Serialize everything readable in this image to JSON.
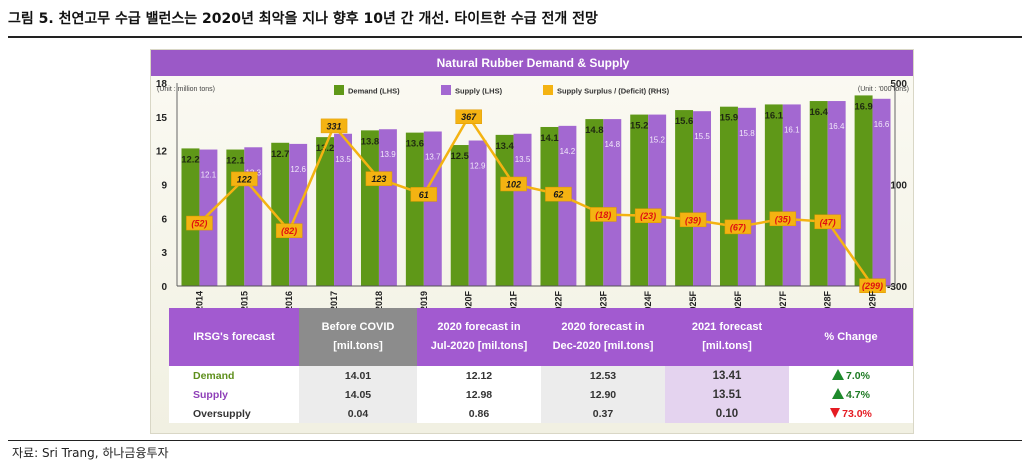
{
  "figure_title": "그림 5. 천연고무 수급 밸런스는 2020년 최악을 지나 향후 10년 간 개선. 타이트한 수급 전개 전망",
  "source": "자료: Sri Trang, 하나금융투자",
  "colors": {
    "demand": "#5f9818",
    "supply": "#a368d1",
    "surplus": "#f4b312",
    "header": "#9b59c7"
  },
  "chart_data": {
    "type": "bar",
    "title": "Natural Rubber Demand & Supply",
    "unit_left": "(Unit : million tons)",
    "unit_right": "(Unit : '000 tons)",
    "categories": [
      "2014",
      "2015",
      "2016",
      "2017",
      "2018",
      "2019",
      "2020F",
      "2021F",
      "2022F",
      "2023F",
      "2024F",
      "2025F",
      "2026F",
      "2027F",
      "2028F",
      "2029F"
    ],
    "series": [
      {
        "name": "Demand (LHS)",
        "kind": "bar",
        "axis": "left",
        "values": [
          12.2,
          12.1,
          12.7,
          13.2,
          13.8,
          13.6,
          12.5,
          13.4,
          14.1,
          14.8,
          15.2,
          15.6,
          15.9,
          16.1,
          16.4,
          16.9
        ]
      },
      {
        "name": "Supply (LHS)",
        "kind": "bar",
        "axis": "left",
        "values": [
          12.1,
          12.3,
          12.6,
          13.5,
          13.9,
          13.7,
          12.9,
          13.5,
          14.2,
          14.8,
          15.2,
          15.5,
          15.8,
          16.1,
          16.4,
          16.6
        ]
      },
      {
        "name": "Supply Surplus / (Deficit) (RHS)",
        "kind": "line",
        "axis": "right",
        "values": [
          -52,
          122,
          -82,
          331,
          123,
          61,
          367,
          102,
          62,
          -18,
          -23,
          -39,
          -67,
          -35,
          -47,
          -299
        ]
      }
    ],
    "surplus_labels": [
      "(52)",
      "122",
      "(82)",
      "331",
      "123",
      "61",
      "367",
      "102",
      "62",
      "(18)",
      "(23)",
      "(39)",
      "(67)",
      "(35)",
      "(47)",
      "(299)"
    ],
    "left_axis": {
      "range": [
        0,
        18
      ],
      "ticks": [
        "0",
        "3",
        "6",
        "9",
        "12",
        "15",
        "18"
      ]
    },
    "right_axis": {
      "range": [
        -300,
        500
      ],
      "ticks": [
        "-300",
        "100",
        "500"
      ]
    },
    "legend_position": "top"
  },
  "table": {
    "headers": [
      {
        "line1": "IRSG's forecast",
        "line2": ""
      },
      {
        "line1": "Before COVID",
        "line2": "[mil.tons]"
      },
      {
        "line1": "2020 forecast in",
        "line2": "Jul-2020 [mil.tons]"
      },
      {
        "line1": "2020 forecast in",
        "line2": "Dec-2020 [mil.tons]"
      },
      {
        "line1": "2021 forecast",
        "line2": "[mil.tons]"
      },
      {
        "line1": "% Change",
        "line2": ""
      }
    ],
    "rows": [
      {
        "label": "Demand",
        "values": [
          "14.01",
          "12.12",
          "12.53",
          "13.41"
        ],
        "change": "7.0%",
        "direction": "up"
      },
      {
        "label": "Supply",
        "values": [
          "14.05",
          "12.98",
          "12.90",
          "13.51"
        ],
        "change": "4.7%",
        "direction": "up"
      },
      {
        "label": "Oversupply",
        "values": [
          "0.04",
          "0.86",
          "0.37",
          "0.10"
        ],
        "change": "73.0%",
        "direction": "down"
      }
    ]
  }
}
